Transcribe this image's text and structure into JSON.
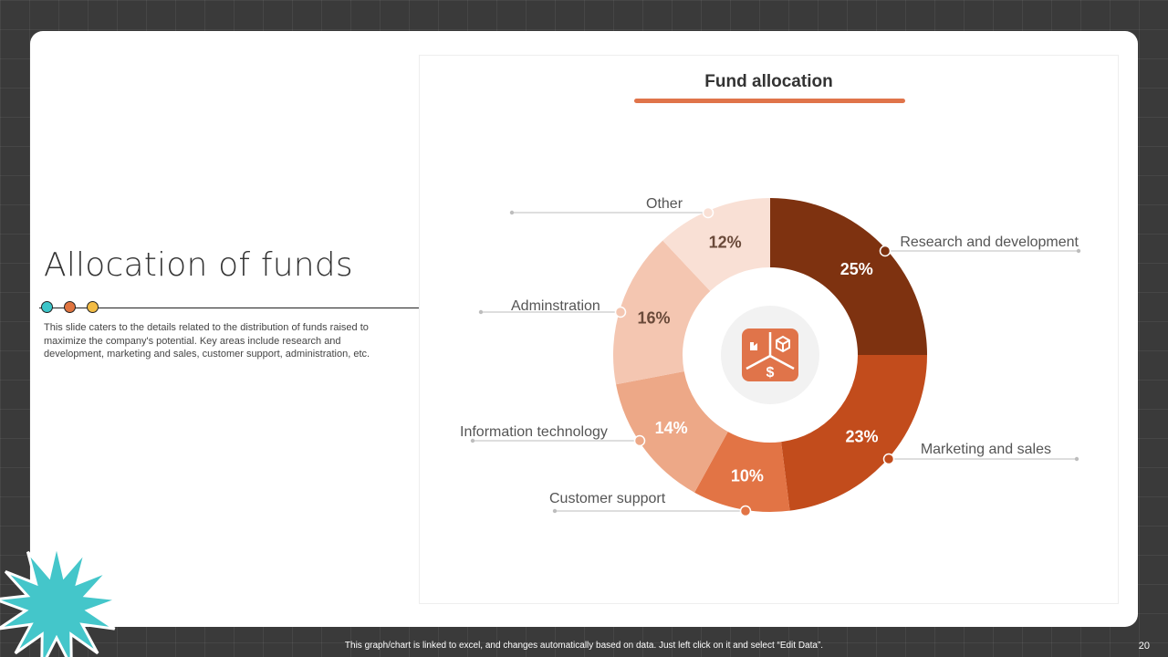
{
  "slide": {
    "title": "Allocation of funds",
    "description": "This slide caters to the details related to the distribution of funds raised to maximize the company's potential. Key areas include research and development, marketing and sales, customer support, administration, etc.",
    "accent_dots": [
      "#3cc5c9",
      "#e0743f",
      "#f2bc45"
    ]
  },
  "footer": {
    "note": "This graph/chart is linked to excel, and changes automatically based on data. Just left click on it and select “Edit Data”.",
    "page_number": "20"
  },
  "chart_data": {
    "type": "pie",
    "title": "Fund allocation",
    "center_icon": "funds-icon",
    "slices": [
      {
        "label": "Research and development",
        "value": 25,
        "display": "25%",
        "color": "#7e3210"
      },
      {
        "label": "Marketing and sales",
        "value": 23,
        "display": "23%",
        "color": "#c24c1c"
      },
      {
        "label": "Customer support",
        "value": 10,
        "display": "10%",
        "color": "#e27445"
      },
      {
        "label": "Information technology",
        "value": 14,
        "display": "14%",
        "color": "#eda887"
      },
      {
        "label": "Adminstration",
        "value": 16,
        "display": "16%",
        "color": "#f4c6b1"
      },
      {
        "label": "Other",
        "value": 12,
        "display": "12%",
        "color": "#f9e0d5"
      }
    ]
  }
}
